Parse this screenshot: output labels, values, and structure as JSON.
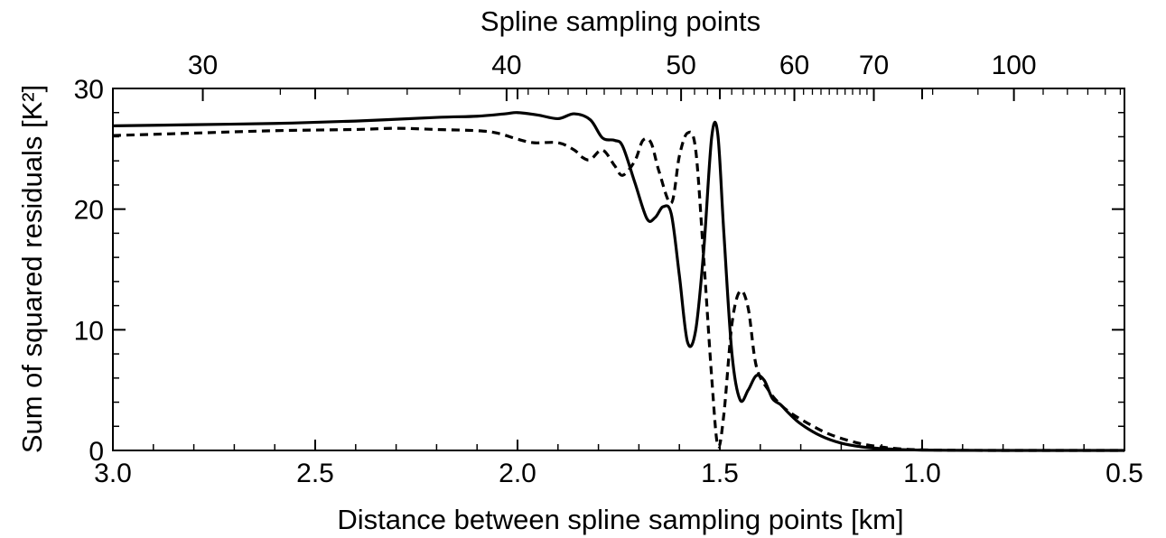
{
  "chart_data": {
    "type": "line",
    "xlabel": "Distance between spline sampling points [km]",
    "ylabel": "Sum of squared residuals [K²]",
    "top_xlabel": "Spline sampling points",
    "xlim": [
      3.0,
      0.5
    ],
    "ylim": [
      0,
      30
    ],
    "x_ticks": [
      "3.0",
      "2.5",
      "2.0",
      "1.5",
      "1.0",
      "0.5"
    ],
    "y_ticks": [
      "0",
      "10",
      "20",
      "30"
    ],
    "top_ticks": [
      "30",
      "40",
      "50",
      "60",
      "70",
      "100"
    ],
    "grid": false,
    "series": [
      {
        "style": "solid",
        "x": [
          3.0,
          2.8,
          2.6,
          2.4,
          2.2,
          2.1,
          2.03,
          2.0,
          1.95,
          1.9,
          1.86,
          1.82,
          1.79,
          1.76,
          1.74,
          1.71,
          1.68,
          1.66,
          1.64,
          1.62,
          1.6,
          1.58,
          1.56,
          1.54,
          1.52,
          1.505,
          1.49,
          1.47,
          1.45,
          1.43,
          1.41,
          1.39,
          1.37,
          1.35,
          1.33,
          1.3,
          1.25,
          1.2,
          1.15,
          1.1,
          1.05,
          1.0,
          0.9,
          0.8,
          0.7,
          0.6,
          0.5
        ],
        "y": [
          26.9,
          27.0,
          27.1,
          27.3,
          27.6,
          27.7,
          27.9,
          28.0,
          27.8,
          27.5,
          27.9,
          27.4,
          25.9,
          25.7,
          25.2,
          22.2,
          19.2,
          19.3,
          20.2,
          19.6,
          14.5,
          9.0,
          9.9,
          16.5,
          26.0,
          26.2,
          18.0,
          8.0,
          4.2,
          5.0,
          6.2,
          5.8,
          4.3,
          3.8,
          3.1,
          2.2,
          1.2,
          0.6,
          0.3,
          0.15,
          0.07,
          0.03,
          0.01,
          0.0,
          0.0,
          0.0,
          0.0
        ]
      },
      {
        "style": "dashed",
        "x": [
          3.0,
          2.8,
          2.6,
          2.4,
          2.3,
          2.2,
          2.1,
          2.05,
          2.0,
          1.96,
          1.9,
          1.86,
          1.84,
          1.82,
          1.79,
          1.76,
          1.74,
          1.71,
          1.69,
          1.67,
          1.65,
          1.62,
          1.6,
          1.58,
          1.56,
          1.54,
          1.52,
          1.505,
          1.49,
          1.47,
          1.45,
          1.43,
          1.41,
          1.38,
          1.35,
          1.32,
          1.28,
          1.24,
          1.2,
          1.15,
          1.1,
          1.05,
          1.0,
          0.9,
          0.8,
          0.7,
          0.6,
          0.5
        ],
        "y": [
          26.1,
          26.3,
          26.5,
          26.6,
          26.7,
          26.6,
          26.5,
          26.3,
          25.8,
          25.5,
          25.5,
          24.9,
          24.3,
          24.1,
          24.9,
          23.6,
          22.8,
          24.0,
          25.7,
          25.5,
          23.1,
          20.5,
          24.4,
          26.3,
          25.0,
          16.0,
          6.0,
          0.4,
          3.0,
          10.5,
          13.2,
          11.8,
          7.0,
          5.0,
          3.8,
          3.0,
          2.2,
          1.5,
          1.0,
          0.55,
          0.28,
          0.12,
          0.05,
          0.01,
          0.0,
          0.0,
          0.0,
          0.0
        ]
      }
    ]
  }
}
